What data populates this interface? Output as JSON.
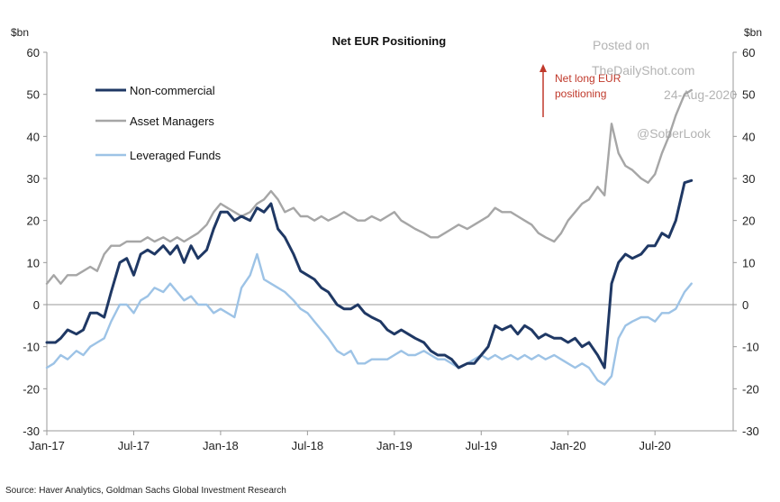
{
  "chart_data": {
    "type": "line",
    "title": "Net EUR  Positioning",
    "left_unit": "$bn",
    "right_unit": "$bn",
    "ylim": [
      -30,
      60
    ],
    "yticks": [
      -30,
      -20,
      -10,
      0,
      10,
      20,
      30,
      40,
      50,
      60
    ],
    "x_range": [
      "2017-01",
      "2020-11"
    ],
    "xticks": [
      {
        "label": "Jan-17",
        "t": 2017.0
      },
      {
        "label": "Jul-17",
        "t": 2017.5
      },
      {
        "label": "Jan-18",
        "t": 2018.0
      },
      {
        "label": "Jul-18",
        "t": 2018.5
      },
      {
        "label": "Jan-19",
        "t": 2019.0
      },
      {
        "label": "Jul-19",
        "t": 2019.5
      },
      {
        "label": "Jan-20",
        "t": 2020.0
      },
      {
        "label": "Jul-20",
        "t": 2020.5
      }
    ],
    "legend_placement": "top-left",
    "grid": false,
    "zero_line": true,
    "series": [
      {
        "name": "Non-commercial",
        "color": "#1f3864",
        "points": [
          [
            2017.0,
            -9
          ],
          [
            2017.05,
            -9
          ],
          [
            2017.08,
            -8
          ],
          [
            2017.12,
            -6
          ],
          [
            2017.17,
            -7
          ],
          [
            2017.21,
            -6
          ],
          [
            2017.25,
            -2
          ],
          [
            2017.29,
            -2
          ],
          [
            2017.33,
            -3
          ],
          [
            2017.37,
            3
          ],
          [
            2017.42,
            10
          ],
          [
            2017.46,
            11
          ],
          [
            2017.5,
            7
          ],
          [
            2017.54,
            12
          ],
          [
            2017.58,
            13
          ],
          [
            2017.62,
            12
          ],
          [
            2017.67,
            14
          ],
          [
            2017.71,
            12
          ],
          [
            2017.75,
            14
          ],
          [
            2017.79,
            10
          ],
          [
            2017.83,
            14
          ],
          [
            2017.87,
            11
          ],
          [
            2017.92,
            13
          ],
          [
            2017.96,
            18
          ],
          [
            2018.0,
            22
          ],
          [
            2018.04,
            22
          ],
          [
            2018.08,
            20
          ],
          [
            2018.12,
            21
          ],
          [
            2018.17,
            20
          ],
          [
            2018.21,
            23
          ],
          [
            2018.25,
            22
          ],
          [
            2018.29,
            24
          ],
          [
            2018.33,
            18
          ],
          [
            2018.37,
            16
          ],
          [
            2018.42,
            12
          ],
          [
            2018.46,
            8
          ],
          [
            2018.5,
            7
          ],
          [
            2018.54,
            6
          ],
          [
            2018.58,
            4
          ],
          [
            2018.62,
            3
          ],
          [
            2018.67,
            0
          ],
          [
            2018.71,
            -1
          ],
          [
            2018.75,
            -1
          ],
          [
            2018.79,
            0
          ],
          [
            2018.83,
            -2
          ],
          [
            2018.87,
            -3
          ],
          [
            2018.92,
            -4
          ],
          [
            2018.96,
            -6
          ],
          [
            2019.0,
            -7
          ],
          [
            2019.04,
            -6
          ],
          [
            2019.08,
            -7
          ],
          [
            2019.12,
            -8
          ],
          [
            2019.17,
            -9
          ],
          [
            2019.21,
            -11
          ],
          [
            2019.25,
            -12
          ],
          [
            2019.29,
            -12
          ],
          [
            2019.33,
            -13
          ],
          [
            2019.37,
            -15
          ],
          [
            2019.42,
            -14
          ],
          [
            2019.46,
            -14
          ],
          [
            2019.5,
            -12
          ],
          [
            2019.54,
            -10
          ],
          [
            2019.58,
            -5
          ],
          [
            2019.62,
            -6
          ],
          [
            2019.67,
            -5
          ],
          [
            2019.71,
            -7
          ],
          [
            2019.75,
            -5
          ],
          [
            2019.79,
            -6
          ],
          [
            2019.83,
            -8
          ],
          [
            2019.87,
            -7
          ],
          [
            2019.92,
            -8
          ],
          [
            2019.96,
            -8
          ],
          [
            2020.0,
            -9
          ],
          [
            2020.04,
            -8
          ],
          [
            2020.08,
            -10
          ],
          [
            2020.12,
            -9
          ],
          [
            2020.17,
            -12
          ],
          [
            2020.21,
            -15
          ],
          [
            2020.25,
            5
          ],
          [
            2020.29,
            10
          ],
          [
            2020.33,
            12
          ],
          [
            2020.37,
            11
          ],
          [
            2020.42,
            12
          ],
          [
            2020.46,
            14
          ],
          [
            2020.5,
            14
          ],
          [
            2020.54,
            17
          ],
          [
            2020.58,
            16
          ],
          [
            2020.62,
            20
          ],
          [
            2020.67,
            29
          ],
          [
            2020.71,
            29.5
          ]
        ]
      },
      {
        "name": "Asset Managers",
        "color": "#a6a6a6",
        "points": [
          [
            2017.0,
            5
          ],
          [
            2017.04,
            7
          ],
          [
            2017.08,
            5
          ],
          [
            2017.12,
            7
          ],
          [
            2017.17,
            7
          ],
          [
            2017.21,
            8
          ],
          [
            2017.25,
            9
          ],
          [
            2017.29,
            8
          ],
          [
            2017.33,
            12
          ],
          [
            2017.37,
            14
          ],
          [
            2017.42,
            14
          ],
          [
            2017.46,
            15
          ],
          [
            2017.5,
            15
          ],
          [
            2017.54,
            15
          ],
          [
            2017.58,
            16
          ],
          [
            2017.62,
            15
          ],
          [
            2017.67,
            16
          ],
          [
            2017.71,
            15
          ],
          [
            2017.75,
            16
          ],
          [
            2017.79,
            15
          ],
          [
            2017.83,
            16
          ],
          [
            2017.87,
            17
          ],
          [
            2017.92,
            19
          ],
          [
            2017.96,
            22
          ],
          [
            2018.0,
            24
          ],
          [
            2018.04,
            23
          ],
          [
            2018.08,
            22
          ],
          [
            2018.12,
            21
          ],
          [
            2018.17,
            22
          ],
          [
            2018.21,
            24
          ],
          [
            2018.25,
            25
          ],
          [
            2018.29,
            27
          ],
          [
            2018.33,
            25
          ],
          [
            2018.37,
            22
          ],
          [
            2018.42,
            23
          ],
          [
            2018.46,
            21
          ],
          [
            2018.5,
            21
          ],
          [
            2018.54,
            20
          ],
          [
            2018.58,
            21
          ],
          [
            2018.62,
            20
          ],
          [
            2018.67,
            21
          ],
          [
            2018.71,
            22
          ],
          [
            2018.75,
            21
          ],
          [
            2018.79,
            20
          ],
          [
            2018.83,
            20
          ],
          [
            2018.87,
            21
          ],
          [
            2018.92,
            20
          ],
          [
            2018.96,
            21
          ],
          [
            2019.0,
            22
          ],
          [
            2019.04,
            20
          ],
          [
            2019.08,
            19
          ],
          [
            2019.12,
            18
          ],
          [
            2019.17,
            17
          ],
          [
            2019.21,
            16
          ],
          [
            2019.25,
            16
          ],
          [
            2019.29,
            17
          ],
          [
            2019.33,
            18
          ],
          [
            2019.37,
            19
          ],
          [
            2019.42,
            18
          ],
          [
            2019.46,
            19
          ],
          [
            2019.5,
            20
          ],
          [
            2019.54,
            21
          ],
          [
            2019.58,
            23
          ],
          [
            2019.62,
            22
          ],
          [
            2019.67,
            22
          ],
          [
            2019.71,
            21
          ],
          [
            2019.75,
            20
          ],
          [
            2019.79,
            19
          ],
          [
            2019.83,
            17
          ],
          [
            2019.87,
            16
          ],
          [
            2019.92,
            15
          ],
          [
            2019.96,
            17
          ],
          [
            2020.0,
            20
          ],
          [
            2020.04,
            22
          ],
          [
            2020.08,
            24
          ],
          [
            2020.12,
            25
          ],
          [
            2020.17,
            28
          ],
          [
            2020.21,
            26
          ],
          [
            2020.25,
            43
          ],
          [
            2020.29,
            36
          ],
          [
            2020.33,
            33
          ],
          [
            2020.37,
            32
          ],
          [
            2020.42,
            30
          ],
          [
            2020.46,
            29
          ],
          [
            2020.5,
            31
          ],
          [
            2020.54,
            36
          ],
          [
            2020.58,
            40
          ],
          [
            2020.62,
            45
          ],
          [
            2020.67,
            50
          ],
          [
            2020.71,
            51
          ]
        ]
      },
      {
        "name": "Leveraged Funds",
        "color": "#9dc3e6",
        "points": [
          [
            2017.0,
            -15
          ],
          [
            2017.04,
            -14
          ],
          [
            2017.08,
            -12
          ],
          [
            2017.12,
            -13
          ],
          [
            2017.17,
            -11
          ],
          [
            2017.21,
            -12
          ],
          [
            2017.25,
            -10
          ],
          [
            2017.29,
            -9
          ],
          [
            2017.33,
            -8
          ],
          [
            2017.37,
            -4
          ],
          [
            2017.42,
            0
          ],
          [
            2017.46,
            0
          ],
          [
            2017.5,
            -2
          ],
          [
            2017.54,
            1
          ],
          [
            2017.58,
            2
          ],
          [
            2017.62,
            4
          ],
          [
            2017.67,
            3
          ],
          [
            2017.71,
            5
          ],
          [
            2017.75,
            3
          ],
          [
            2017.79,
            1
          ],
          [
            2017.83,
            2
          ],
          [
            2017.87,
            0
          ],
          [
            2017.92,
            0
          ],
          [
            2017.96,
            -2
          ],
          [
            2018.0,
            -1
          ],
          [
            2018.04,
            -2
          ],
          [
            2018.08,
            -3
          ],
          [
            2018.12,
            4
          ],
          [
            2018.17,
            7
          ],
          [
            2018.21,
            12
          ],
          [
            2018.25,
            6
          ],
          [
            2018.29,
            5
          ],
          [
            2018.33,
            4
          ],
          [
            2018.37,
            3
          ],
          [
            2018.42,
            1
          ],
          [
            2018.46,
            -1
          ],
          [
            2018.5,
            -2
          ],
          [
            2018.54,
            -4
          ],
          [
            2018.58,
            -6
          ],
          [
            2018.62,
            -8
          ],
          [
            2018.67,
            -11
          ],
          [
            2018.71,
            -12
          ],
          [
            2018.75,
            -11
          ],
          [
            2018.79,
            -14
          ],
          [
            2018.83,
            -14
          ],
          [
            2018.87,
            -13
          ],
          [
            2018.92,
            -13
          ],
          [
            2018.96,
            -13
          ],
          [
            2019.0,
            -12
          ],
          [
            2019.04,
            -11
          ],
          [
            2019.08,
            -12
          ],
          [
            2019.12,
            -12
          ],
          [
            2019.17,
            -11
          ],
          [
            2019.21,
            -12
          ],
          [
            2019.25,
            -13
          ],
          [
            2019.29,
            -13
          ],
          [
            2019.33,
            -14
          ],
          [
            2019.37,
            -15
          ],
          [
            2019.42,
            -14
          ],
          [
            2019.46,
            -13
          ],
          [
            2019.5,
            -12
          ],
          [
            2019.54,
            -13
          ],
          [
            2019.58,
            -12
          ],
          [
            2019.62,
            -13
          ],
          [
            2019.67,
            -12
          ],
          [
            2019.71,
            -13
          ],
          [
            2019.75,
            -12
          ],
          [
            2019.79,
            -13
          ],
          [
            2019.83,
            -12
          ],
          [
            2019.87,
            -13
          ],
          [
            2019.92,
            -12
          ],
          [
            2019.96,
            -13
          ],
          [
            2020.0,
            -14
          ],
          [
            2020.04,
            -15
          ],
          [
            2020.08,
            -14
          ],
          [
            2020.12,
            -15
          ],
          [
            2020.17,
            -18
          ],
          [
            2020.21,
            -19
          ],
          [
            2020.25,
            -17
          ],
          [
            2020.29,
            -8
          ],
          [
            2020.33,
            -5
          ],
          [
            2020.37,
            -4
          ],
          [
            2020.42,
            -3
          ],
          [
            2020.46,
            -3
          ],
          [
            2020.5,
            -4
          ],
          [
            2020.54,
            -2
          ],
          [
            2020.58,
            -2
          ],
          [
            2020.62,
            -1
          ],
          [
            2020.67,
            3
          ],
          [
            2020.71,
            5
          ]
        ]
      }
    ],
    "annotation": {
      "lines": [
        "Net long EUR",
        "positioning"
      ],
      "color": "#c0392b",
      "arrow": "up"
    },
    "source": "Source: Haver Analytics, Goldman Sachs Global Investment Research",
    "watermark": {
      "lines": [
        "Posted on",
        "TheDailyShot.com",
        "24-Aug-2020",
        "@SoberLook"
      ]
    }
  }
}
